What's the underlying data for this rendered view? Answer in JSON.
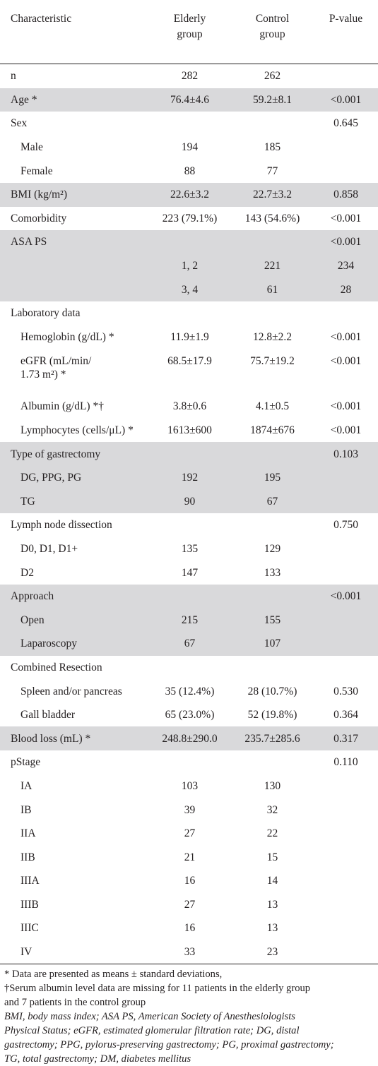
{
  "header": {
    "characteristic": "Characteristic",
    "elderly_l1": "Elderly",
    "elderly_l2": "group",
    "control_l1": "Control",
    "control_l2": "group",
    "pvalue": "P-value"
  },
  "rows": [
    {
      "label": "n",
      "elderly": "282",
      "control": "262",
      "p": "",
      "indent": false,
      "shade": false
    },
    {
      "label": "Age *",
      "elderly": "76.4±4.6",
      "control": "59.2±8.1",
      "p": "<0.001",
      "indent": false,
      "shade": true
    },
    {
      "label": "Sex",
      "elderly": "",
      "control": "",
      "p": "0.645",
      "indent": false,
      "shade": false
    },
    {
      "label": "Male",
      "elderly": "194",
      "control": "185",
      "p": "",
      "indent": true,
      "shade": false
    },
    {
      "label": "Female",
      "elderly": "88",
      "control": "77",
      "p": "",
      "indent": true,
      "shade": false
    },
    {
      "label": "BMI (kg/m²)",
      "elderly": "22.6±3.2",
      "control": "22.7±3.2",
      "p": "0.858",
      "indent": false,
      "shade": true
    },
    {
      "label": "Comorbidity",
      "elderly": "223 (79.1%)",
      "control": "143 (54.6%)",
      "p": "<0.001",
      "indent": false,
      "shade": false
    },
    {
      "label": "ASA PS",
      "elderly": "",
      "control": "",
      "p": "<0.001",
      "indent": false,
      "shade": true
    },
    {
      "label": "",
      "elderly": "1, 2",
      "control": "221",
      "p": "234",
      "indent": false,
      "shade": true
    },
    {
      "label": "",
      "elderly": "3, 4",
      "control": "61",
      "p": "28",
      "indent": false,
      "shade": true
    },
    {
      "label": "Laboratory data",
      "elderly": "",
      "control": "",
      "p": "",
      "indent": false,
      "shade": false
    },
    {
      "label": "Hemoglobin (g/dL) *",
      "elderly": "11.9±1.9",
      "control": "12.8±2.2",
      "p": "<0.001",
      "indent": true,
      "shade": false
    },
    {
      "label": "eGFR (mL/min/",
      "label2": "1.73 m²) *",
      "elderly": "68.5±17.9",
      "control": "75.7±19.2",
      "p": "<0.001",
      "indent": true,
      "shade": false,
      "tall": true
    },
    {
      "label": "Albumin (g/dL) *†",
      "elderly": "3.8±0.6",
      "control": "4.1±0.5",
      "p": "<0.001",
      "indent": true,
      "shade": false
    },
    {
      "label": "Lymphocytes (cells/μL) *",
      "elderly": "1613±600",
      "control": "1874±676",
      "p": "<0.001",
      "indent": true,
      "shade": false
    },
    {
      "label": "Type of gastrectomy",
      "elderly": "",
      "control": "",
      "p": "0.103",
      "indent": false,
      "shade": true
    },
    {
      "label": "DG, PPG, PG",
      "elderly": "192",
      "control": "195",
      "p": "",
      "indent": true,
      "shade": true
    },
    {
      "label": "TG",
      "elderly": "90",
      "control": "67",
      "p": "",
      "indent": true,
      "shade": true
    },
    {
      "label": "Lymph node dissection",
      "elderly": "",
      "control": "",
      "p": "0.750",
      "indent": false,
      "shade": false
    },
    {
      "label": "D0, D1, D1+",
      "elderly": "135",
      "control": "129",
      "p": "",
      "indent": true,
      "shade": false
    },
    {
      "label": "D2",
      "elderly": "147",
      "control": "133",
      "p": "",
      "indent": true,
      "shade": false
    },
    {
      "label": "Approach",
      "elderly": "",
      "control": "",
      "p": "<0.001",
      "indent": false,
      "shade": true
    },
    {
      "label": "Open",
      "elderly": "215",
      "control": "155",
      "p": "",
      "indent": true,
      "shade": true
    },
    {
      "label": "Laparoscopy",
      "elderly": "67",
      "control": "107",
      "p": "",
      "indent": true,
      "shade": true
    },
    {
      "label": "Combined Resection",
      "elderly": "",
      "control": "",
      "p": "",
      "indent": false,
      "shade": false
    },
    {
      "label": "Spleen and/or pancreas",
      "elderly": "35 (12.4%)",
      "control": "28 (10.7%)",
      "p": "0.530",
      "indent": true,
      "shade": false
    },
    {
      "label": "Gall bladder",
      "elderly": "65 (23.0%)",
      "control": "52 (19.8%)",
      "p": "0.364",
      "indent": true,
      "shade": false
    },
    {
      "label": "Blood loss (mL) *",
      "elderly": "248.8±290.0",
      "control": "235.7±285.6",
      "p": "0.317",
      "indent": false,
      "shade": true
    },
    {
      "label": "pStage",
      "elderly": "",
      "control": "",
      "p": "0.110",
      "indent": false,
      "shade": false
    },
    {
      "label": "IA",
      "elderly": "103",
      "control": "130",
      "p": "",
      "indent": true,
      "shade": false
    },
    {
      "label": "IB",
      "elderly": "39",
      "control": "32",
      "p": "",
      "indent": true,
      "shade": false
    },
    {
      "label": "IIA",
      "elderly": "27",
      "control": "22",
      "p": "",
      "indent": true,
      "shade": false
    },
    {
      "label": "IIB",
      "elderly": "21",
      "control": "15",
      "p": "",
      "indent": true,
      "shade": false
    },
    {
      "label": "IIIA",
      "elderly": "16",
      "control": "14",
      "p": "",
      "indent": true,
      "shade": false
    },
    {
      "label": "IIIB",
      "elderly": "27",
      "control": "13",
      "p": "",
      "indent": true,
      "shade": false
    },
    {
      "label": "IIIC",
      "elderly": "16",
      "control": "13",
      "p": "",
      "indent": true,
      "shade": false
    },
    {
      "label": "IV",
      "elderly": "33",
      "control": "23",
      "p": "",
      "indent": true,
      "shade": false
    }
  ],
  "notes": {
    "line1": "* Data are presented as means ± standard deviations,",
    "line2": "†Serum albumin level data are missing for 11 patients in the elderly group",
    "line3": "and 7 patients in the control group",
    "abbrev_1": "BMI, body mass index; ASA PS, American Society of Anesthesiologists",
    "abbrev_2": "Physical Status; eGFR, estimated glomerular filtration rate; DG, distal",
    "abbrev_3": "gastrectomy; PPG, pylorus-preserving gastrectomy; PG, proximal gastrectomy;",
    "abbrev_4": "TG, total gastrectomy; DM, diabetes mellitus"
  },
  "colors": {
    "shade": "#d9d9db",
    "text": "#231f20"
  }
}
